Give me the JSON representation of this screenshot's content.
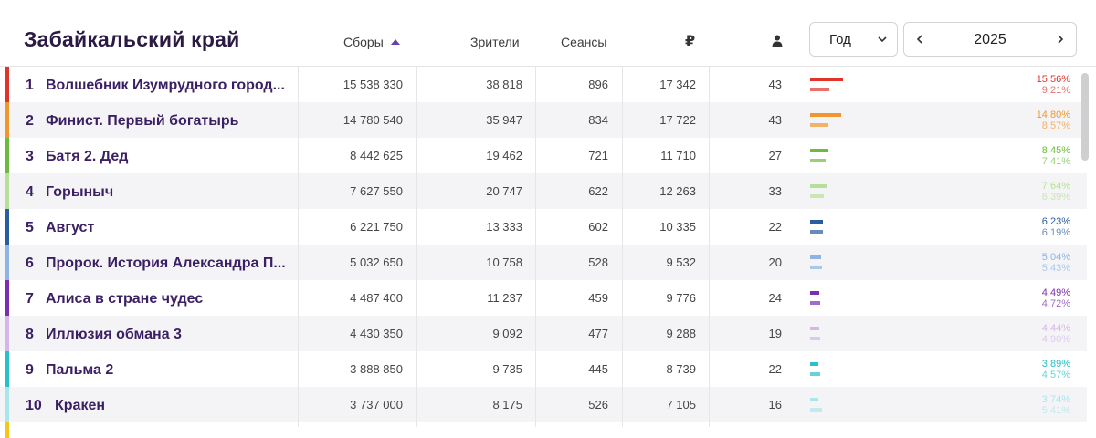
{
  "header": {
    "title": "Забайкальский край",
    "columns": {
      "gross": "Сборы",
      "viewers": "Зрители",
      "sessions": "Сеансы",
      "ticket_price": "₽",
      "per_session_icon": "person-icon"
    },
    "period_select": {
      "value": "Год"
    },
    "year_nav": {
      "value": "2025"
    }
  },
  "rows": [
    {
      "rank": "1",
      "title": "Волшебник Изумрудного город...",
      "gross": "15 538 330",
      "viewers": "38 818",
      "sessions": "896",
      "price": "17 342",
      "per_session": "43",
      "share1": "15.56%",
      "share2": "9.21%",
      "color": "#e0342b"
    },
    {
      "rank": "2",
      "title": "Финист. Первый богатырь",
      "gross": "14 780 540",
      "viewers": "35 947",
      "sessions": "834",
      "price": "17 722",
      "per_session": "43",
      "share1": "14.80%",
      "share2": "8.57%",
      "color": "#f0962d"
    },
    {
      "rank": "3",
      "title": "Батя 2. Дед",
      "gross": "8 442 625",
      "viewers": "19 462",
      "sessions": "721",
      "price": "11 710",
      "per_session": "27",
      "share1": "8.45%",
      "share2": "7.41%",
      "color": "#6cba3e"
    },
    {
      "rank": "4",
      "title": "Горыныч",
      "gross": "7 627 550",
      "viewers": "20 747",
      "sessions": "622",
      "price": "12 263",
      "per_session": "33",
      "share1": "7.64%",
      "share2": "6.39%",
      "color": "#b6e09a"
    },
    {
      "rank": "5",
      "title": "Август",
      "gross": "6 221 750",
      "viewers": "13 333",
      "sessions": "602",
      "price": "10 335",
      "per_session": "22",
      "share1": "6.23%",
      "share2": "6.19%",
      "color": "#2a5d9e"
    },
    {
      "rank": "6",
      "title": "Пророк. История Александра П...",
      "gross": "5 032 650",
      "viewers": "10 758",
      "sessions": "528",
      "price": "9 532",
      "per_session": "20",
      "share1": "5.04%",
      "share2": "5.43%",
      "color": "#8db4e2"
    },
    {
      "rank": "7",
      "title": "Алиса в стране чудес",
      "gross": "4 487 400",
      "viewers": "11 237",
      "sessions": "459",
      "price": "9 776",
      "per_session": "24",
      "share1": "4.49%",
      "share2": "4.72%",
      "color": "#7b2fb0"
    },
    {
      "rank": "8",
      "title": "Иллюзия обмана 3",
      "gross": "4 430 350",
      "viewers": "9 092",
      "sessions": "477",
      "price": "9 288",
      "per_session": "19",
      "share1": "4.44%",
      "share2": "4.90%",
      "color": "#d4b7e8"
    },
    {
      "rank": "9",
      "title": "Пальма 2",
      "gross": "3 888 850",
      "viewers": "9 735",
      "sessions": "445",
      "price": "8 739",
      "per_session": "22",
      "share1": "3.89%",
      "share2": "4.57%",
      "color": "#26c1c9"
    },
    {
      "rank": "10",
      "title": "Кракен",
      "gross": "3 737 000",
      "viewers": "8 175",
      "sessions": "526",
      "price": "7 105",
      "per_session": "16",
      "share1": "3.74%",
      "share2": "5.41%",
      "color": "#a8e6ec"
    }
  ],
  "colors": {
    "title": "#2b1a44",
    "row_text": "#3b1f63",
    "accent": "#6a3fb0",
    "next_stripe": "#f5c518"
  }
}
